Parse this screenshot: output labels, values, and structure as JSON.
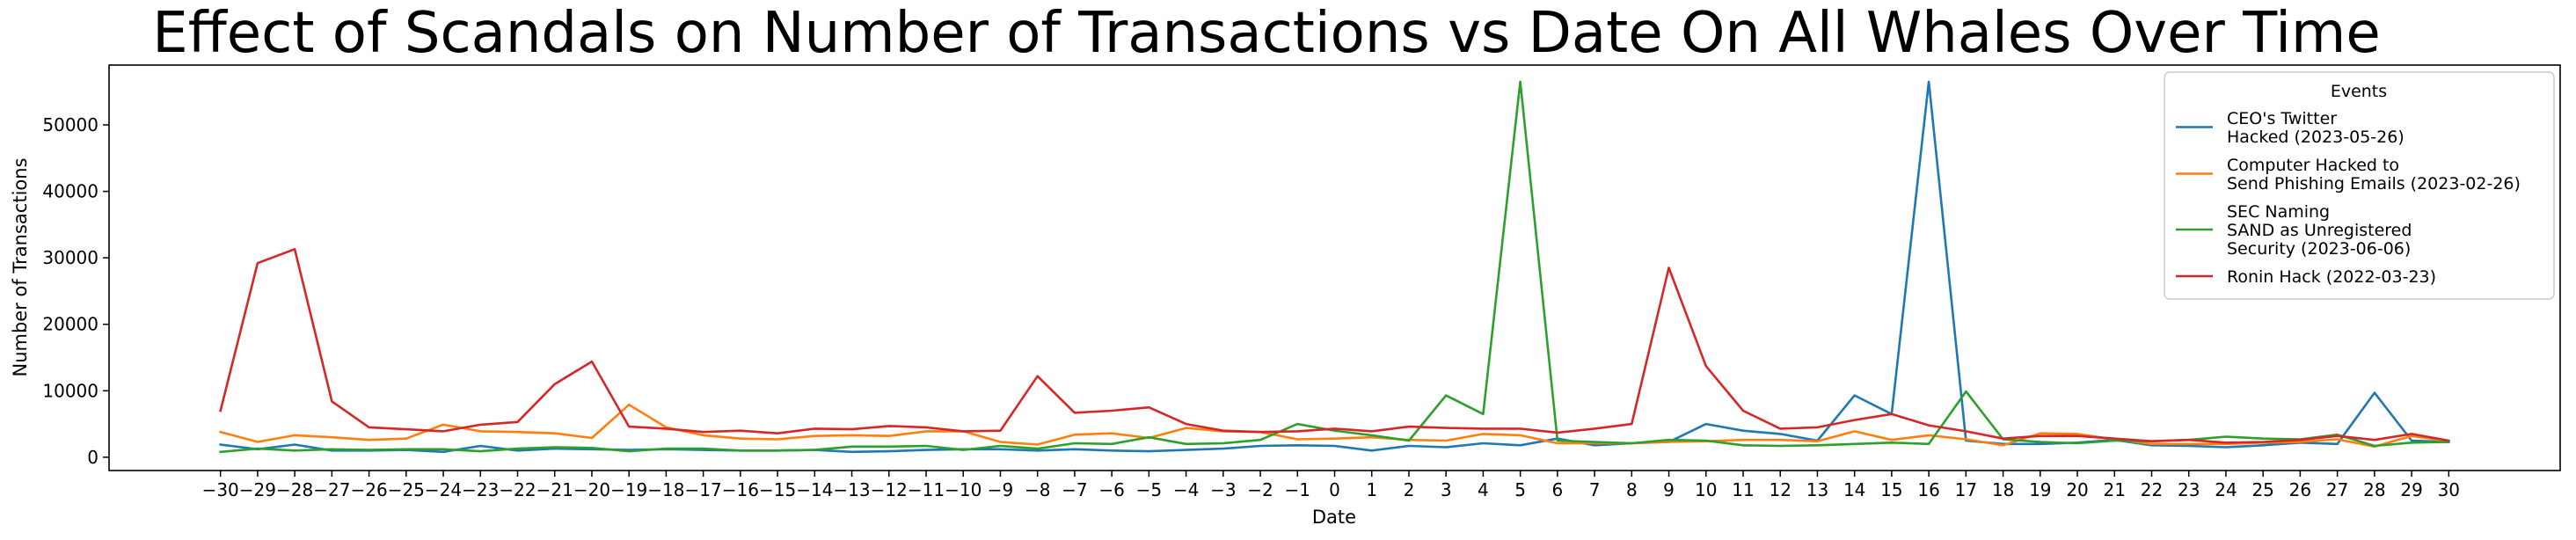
{
  "chart_data": {
    "type": "line",
    "title": "Effect of Scandals on Number of Transactions vs Date On All Whales Over Time",
    "xlabel": "Date",
    "ylabel": "Number of Transactions",
    "xlim": [
      -33,
      33
    ],
    "ylim": [
      -2000,
      59000
    ],
    "grid": false,
    "x": [
      -30,
      -29,
      -28,
      -27,
      -26,
      -25,
      -24,
      -23,
      -22,
      -21,
      -20,
      -19,
      -18,
      -17,
      -16,
      -15,
      -14,
      -13,
      -12,
      -11,
      -10,
      -9,
      -8,
      -7,
      -6,
      -5,
      -4,
      -3,
      -2,
      -1,
      0,
      1,
      2,
      3,
      4,
      5,
      6,
      7,
      8,
      9,
      10,
      11,
      12,
      13,
      14,
      15,
      16,
      17,
      18,
      19,
      20,
      21,
      22,
      23,
      24,
      25,
      26,
      27,
      28,
      29,
      30
    ],
    "x_tick_labels": [
      "−30",
      "−29",
      "−28",
      "−27",
      "−26",
      "−25",
      "−24",
      "−23",
      "−22",
      "−21",
      "−20",
      "−19",
      "−18",
      "−17",
      "−16",
      "−15",
      "−14",
      "−13",
      "−12",
      "−11",
      "−10",
      "−9",
      "−8",
      "−7",
      "−6",
      "−5",
      "−4",
      "−3",
      "−2",
      "−1",
      "0",
      "1",
      "2",
      "3",
      "4",
      "5",
      "6",
      "7",
      "8",
      "9",
      "10",
      "11",
      "12",
      "13",
      "14",
      "15",
      "16",
      "17",
      "18",
      "19",
      "20",
      "21",
      "22",
      "23",
      "24",
      "25",
      "26",
      "27",
      "28",
      "29",
      "30"
    ],
    "y_ticks": [
      0,
      10000,
      20000,
      30000,
      40000,
      50000
    ],
    "y_tick_labels": [
      "0",
      "10000",
      "20000",
      "30000",
      "40000",
      "50000"
    ],
    "legend": {
      "title": "Events",
      "position": "top-right",
      "entries": [
        [
          "CEO's Twitter",
          "Hacked (2023-05-26)"
        ],
        [
          "Computer Hacked to",
          "Send Phishing Emails (2023-02-26)"
        ],
        [
          "SEC Naming",
          "SAND as Unregistered",
          "Security (2023-06-06)"
        ],
        [
          "Ronin Hack (2022-03-23)"
        ]
      ]
    },
    "series": [
      {
        "name": "CEO's Twitter Hacked (2023-05-26)",
        "color": "#1f77b4",
        "values": [
          1900,
          1200,
          1900,
          1000,
          1000,
          1100,
          800,
          1700,
          1000,
          1300,
          1200,
          1100,
          1200,
          1100,
          1000,
          1000,
          1100,
          800,
          900,
          1100,
          1200,
          1200,
          1000,
          1200,
          1000,
          900,
          1100,
          1300,
          1700,
          1800,
          1700,
          1000,
          1700,
          1500,
          2100,
          1800,
          2800,
          1800,
          2100,
          2300,
          5000,
          4000,
          3500,
          2500,
          9300,
          6500,
          56500,
          2500,
          2000,
          2000,
          2200,
          2600,
          1800,
          1700,
          1500,
          1800,
          2200,
          2000,
          9700,
          2500,
          2300
        ]
      },
      {
        "name": "Computer Hacked to Send Phishing Emails (2023-02-26)",
        "color": "#ff7f0e",
        "values": [
          3800,
          2300,
          3300,
          3000,
          2600,
          2800,
          4900,
          3900,
          3800,
          3600,
          2900,
          7900,
          4500,
          3300,
          2800,
          2700,
          3200,
          3300,
          3200,
          3900,
          3900,
          2300,
          1900,
          3400,
          3600,
          2900,
          4400,
          3900,
          3800,
          2700,
          2800,
          3000,
          2600,
          2500,
          3500,
          3300,
          2100,
          2100,
          2100,
          2300,
          2400,
          2600,
          2600,
          2400,
          3900,
          2600,
          3300,
          2700,
          1800,
          3600,
          3500,
          2700,
          2000,
          2000,
          2000,
          2200,
          2300,
          2700,
          1600,
          3200,
          2400
        ]
      },
      {
        "name": "SEC Naming SAND as Unregistered Security (2023-06-06)",
        "color": "#2ca02c",
        "values": [
          800,
          1300,
          1000,
          1200,
          1100,
          1200,
          1200,
          900,
          1300,
          1500,
          1400,
          900,
          1300,
          1300,
          1000,
          1000,
          1100,
          1600,
          1600,
          1700,
          1100,
          1700,
          1300,
          2100,
          2000,
          3000,
          2000,
          2100,
          2600,
          5000,
          4000,
          3300,
          2500,
          9300,
          6500,
          56500,
          2500,
          2300,
          2100,
          2600,
          2500,
          1800,
          1700,
          1800,
          2000,
          2200,
          2000,
          9900,
          2700,
          2300,
          2100,
          2500,
          2400,
          2600,
          3100,
          2800,
          2700,
          3400,
          1700,
          2200,
          2300
        ]
      },
      {
        "name": "Ronin Hack (2022-03-23)",
        "color": "#d62728",
        "values": [
          7000,
          29200,
          31300,
          8400,
          4500,
          4200,
          3900,
          4900,
          5300,
          11000,
          14400,
          4600,
          4300,
          3800,
          4000,
          3600,
          4300,
          4200,
          4700,
          4500,
          3900,
          4000,
          12200,
          6700,
          7000,
          7500,
          5000,
          4000,
          3800,
          3900,
          4300,
          3900,
          4600,
          4400,
          4300,
          4300,
          3700,
          4300,
          5000,
          28500,
          13700,
          7000,
          4300,
          4500,
          5600,
          6500,
          4800,
          3900,
          2800,
          3200,
          3200,
          2800,
          2400,
          2600,
          2200,
          2300,
          2600,
          3200,
          2600,
          3500,
          2500
        ]
      }
    ]
  }
}
